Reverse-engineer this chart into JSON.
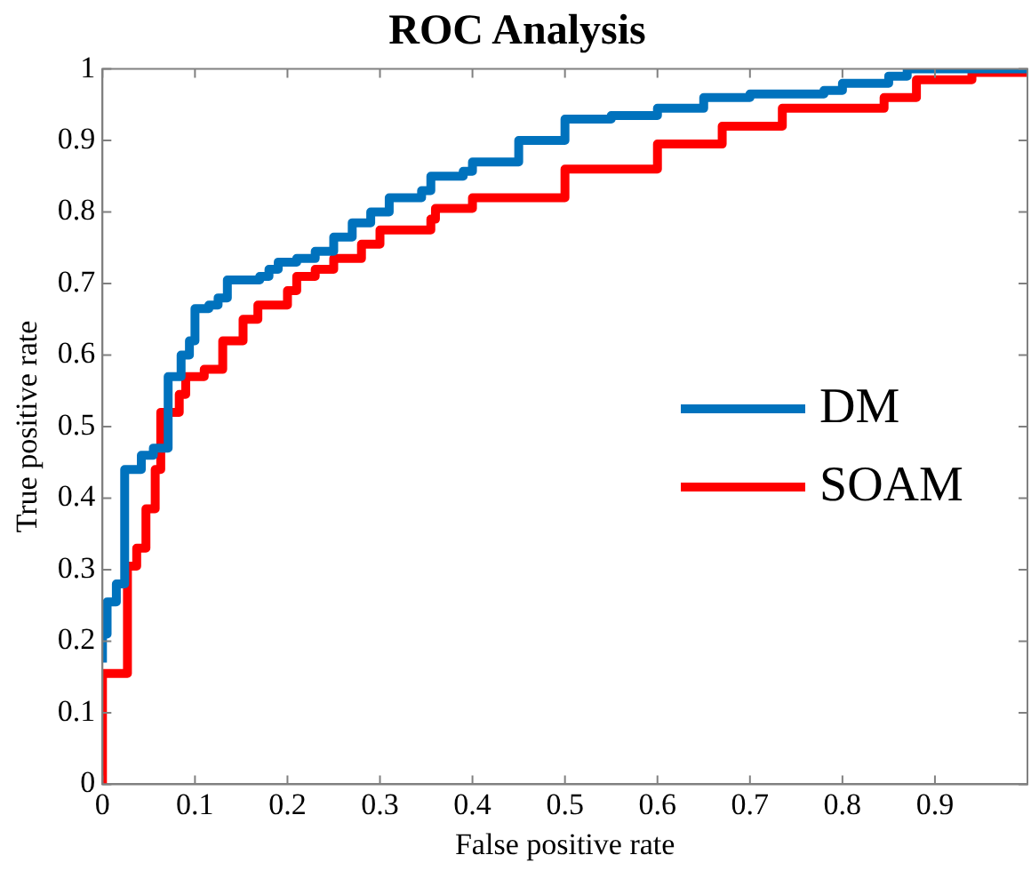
{
  "chart_data": {
    "type": "step",
    "title": "ROC Analysis",
    "xlabel": "False positive rate",
    "ylabel": "True positive rate",
    "xlim": [
      0,
      1
    ],
    "ylim": [
      0,
      1
    ],
    "xticks": [
      0,
      0.1,
      0.2,
      0.3,
      0.4,
      0.5,
      0.6,
      0.7,
      0.8,
      0.9
    ],
    "yticks": [
      0,
      0.1,
      0.2,
      0.3,
      0.4,
      0.5,
      0.6,
      0.7,
      0.8,
      0.9,
      1
    ],
    "grid": false,
    "legend": "right",
    "line_style": "solid",
    "marker": "none",
    "series": [
      {
        "name": "DM",
        "color": "#0072bd",
        "x": [
          0,
          0,
          0.005,
          0.015,
          0.024,
          0.042,
          0.055,
          0.071,
          0.085,
          0.094,
          0.1,
          0.115,
          0.125,
          0.135,
          0.17,
          0.18,
          0.19,
          0.21,
          0.23,
          0.25,
          0.27,
          0.29,
          0.31,
          0.345,
          0.355,
          0.39,
          0.4,
          0.45,
          0.5,
          0.55,
          0.6,
          0.65,
          0.7,
          0.78,
          0.8,
          0.85,
          0.87,
          1
        ],
        "values": [
          0.17,
          0.21,
          0.255,
          0.28,
          0.44,
          0.46,
          0.47,
          0.57,
          0.6,
          0.62,
          0.665,
          0.67,
          0.68,
          0.705,
          0.71,
          0.72,
          0.73,
          0.735,
          0.745,
          0.765,
          0.785,
          0.8,
          0.82,
          0.83,
          0.85,
          0.857,
          0.87,
          0.9,
          0.93,
          0.935,
          0.945,
          0.96,
          0.965,
          0.97,
          0.98,
          0.99,
          1,
          1
        ]
      },
      {
        "name": "SOAM",
        "color": "#ff0000",
        "x": [
          0,
          0,
          0.027,
          0.037,
          0.047,
          0.057,
          0.063,
          0.083,
          0.09,
          0.11,
          0.13,
          0.152,
          0.168,
          0.2,
          0.21,
          0.23,
          0.25,
          0.28,
          0.3,
          0.355,
          0.36,
          0.4,
          0.5,
          0.6,
          0.67,
          0.735,
          0.845,
          0.88,
          0.94,
          1
        ],
        "values": [
          0,
          0.155,
          0.305,
          0.33,
          0.385,
          0.44,
          0.52,
          0.545,
          0.57,
          0.58,
          0.62,
          0.65,
          0.67,
          0.69,
          0.71,
          0.72,
          0.735,
          0.755,
          0.775,
          0.79,
          0.805,
          0.82,
          0.86,
          0.895,
          0.92,
          0.945,
          0.96,
          0.985,
          0.995,
          1
        ]
      }
    ]
  }
}
